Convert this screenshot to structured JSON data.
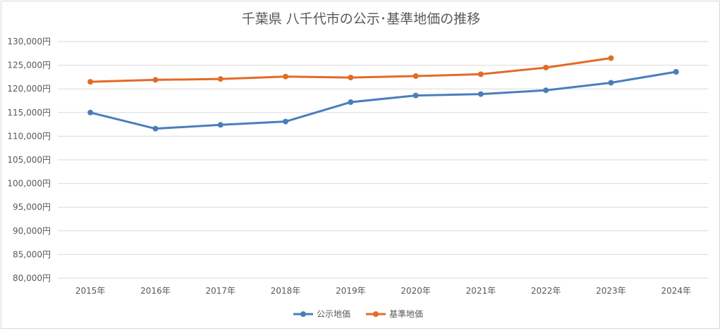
{
  "chart_data": {
    "type": "line",
    "title": "千葉県 八千代市の公示･基準地価の推移",
    "categories": [
      "2015年",
      "2016年",
      "2017年",
      "2018年",
      "2019年",
      "2020年",
      "2021年",
      "2022年",
      "2023年",
      "2024年"
    ],
    "series": [
      {
        "name": "公示地価",
        "color": "#4a7ebb",
        "values": [
          115000,
          111600,
          112400,
          113100,
          117200,
          118600,
          118900,
          119700,
          121300,
          123600
        ]
      },
      {
        "name": "基準地価",
        "color": "#e26b27",
        "values": [
          121500,
          121900,
          122100,
          122600,
          122400,
          122700,
          123100,
          124500,
          126500,
          null
        ]
      }
    ],
    "ylim": [
      80000,
      130000
    ],
    "yticks": [
      "80,000円",
      "85,000円",
      "90,000円",
      "95,000円",
      "100,000円",
      "105,000円",
      "110,000円",
      "115,000円",
      "120,000円",
      "125,000円",
      "130,000円"
    ],
    "grid": true,
    "legend": "bottom"
  }
}
